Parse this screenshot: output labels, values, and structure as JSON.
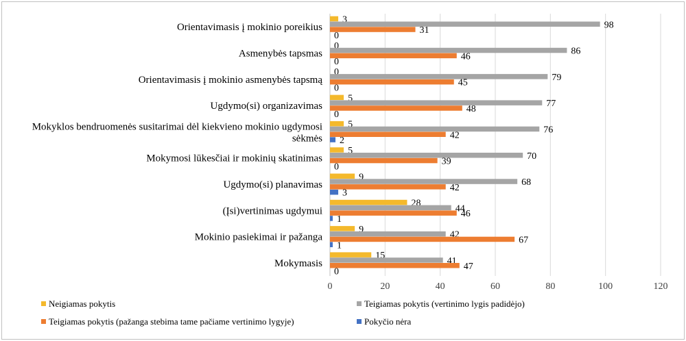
{
  "chart_data": {
    "type": "bar",
    "orientation": "horizontal",
    "categories": [
      [
        "Orientavimasis į mokinio poreikius"
      ],
      [
        "Asmenybės tapsmas"
      ],
      [
        "Orientavimasis į mokinio asmenybės tapsmą"
      ],
      [
        "Ugdymo(si) organizavimas"
      ],
      [
        "Mokyklos bendruomenės susitarimai dėl kiekvieno mokinio ugdymosi",
        "sėkmės"
      ],
      [
        "Mokymosi lūkesčiai ir mokinių skatinimas"
      ],
      [
        "Ugdymo(si) planavimas"
      ],
      [
        "(Įsi)vertinimas ugdymui"
      ],
      [
        "Mokinio pasiekimai  ir pažanga"
      ],
      [
        "Mokymasis"
      ]
    ],
    "series": [
      {
        "name": "Neigiamas pokytis",
        "color": "#f4b92c",
        "values": [
          3,
          0,
          0,
          5,
          5,
          5,
          9,
          28,
          9,
          15
        ]
      },
      {
        "name": "Teigiamas pokytis (vertinimo lygis padidėjo)",
        "color": "#a5a5a5",
        "values": [
          98,
          86,
          79,
          77,
          76,
          70,
          68,
          44,
          42,
          41
        ]
      },
      {
        "name": "Teigiamas pokytis (pažanga stebima tame pačiame vertinimo lygyje)",
        "color": "#ed7d31",
        "values": [
          31,
          46,
          45,
          48,
          42,
          39,
          42,
          46,
          67,
          47
        ]
      },
      {
        "name": "Pokyčio nėra",
        "color": "#4472c4",
        "values": [
          0,
          0,
          0,
          0,
          2,
          0,
          3,
          1,
          1,
          0
        ]
      }
    ],
    "xticks": [
      "0",
      "20",
      "40",
      "60",
      "80",
      "100",
      "120"
    ],
    "xlim": [
      0,
      120
    ],
    "grid": true,
    "legend_position": "bottom",
    "data_labels": true
  }
}
